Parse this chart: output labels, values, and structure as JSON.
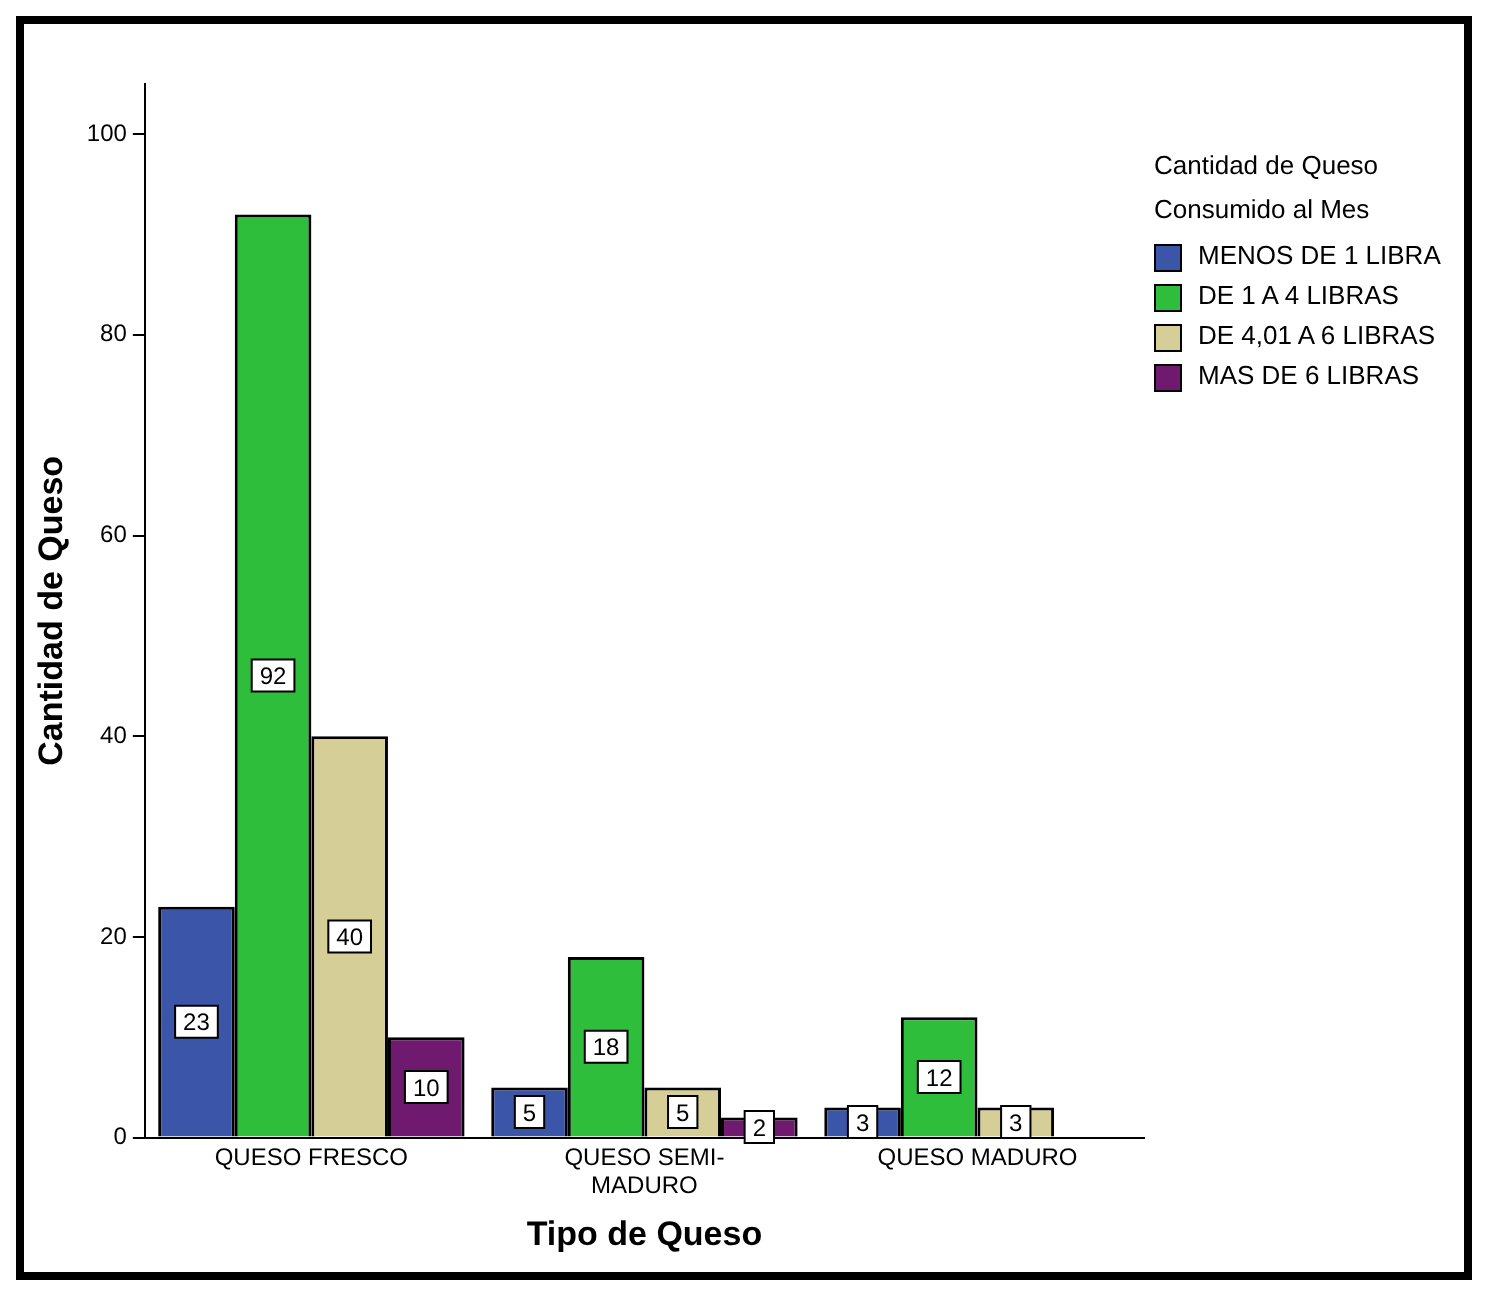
{
  "chart_data": {
    "type": "bar",
    "xlabel": "Tipo de Queso",
    "ylabel": "Cantidad de Queso",
    "legend_title": "Cantidad de Queso Consumido al Mes",
    "legend": "right",
    "categories": [
      "QUESO FRESCO",
      "QUESO SEMI-MADURO",
      "QUESO MADURO"
    ],
    "series": [
      {
        "name": "MENOS DE 1 LIBRA",
        "color": "#3b55a8",
        "values": [
          23,
          5,
          3
        ]
      },
      {
        "name": "DE 1 A 4 LIBRAS",
        "color": "#2fbe3c",
        "values": [
          92,
          18,
          12
        ]
      },
      {
        "name": "DE 4,01 A 6 LIBRAS",
        "color": "#d5cf97",
        "values": [
          40,
          5,
          3
        ]
      },
      {
        "name": "MAS DE 6 LIBRAS",
        "color": "#6f1a6f",
        "values": [
          10,
          2,
          null
        ]
      }
    ],
    "ylim": [
      0,
      105
    ],
    "yticks": [
      0,
      20,
      40,
      60,
      80,
      100
    ],
    "grid": false,
    "data_labels": true
  }
}
